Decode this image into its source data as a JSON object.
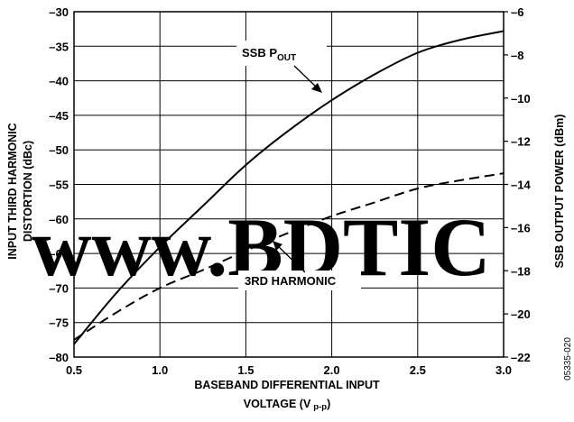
{
  "chart_data": {
    "type": "line",
    "xlabel_line1": "BASEBAND DIFFERENTIAL INPUT",
    "xlabel_line2_main": "VOLTAGE (V",
    "xlabel_line2_sub": "p-p",
    "xlabel_line2_end": ")",
    "ylabel_left_line1": "INPUT THIRD HARMONIC",
    "ylabel_left_line2": "DISTORTION (dBc)",
    "ylabel_right": "SSB OUTPUT POWER (dBm)",
    "xlim": [
      0.5,
      3.0
    ],
    "ylim_left": [
      -80,
      -30
    ],
    "ylim_right": [
      -22,
      -6
    ],
    "x_ticks": [
      "0.5",
      "1.0",
      "1.5",
      "2.0",
      "2.5",
      "3.0"
    ],
    "y_left_ticks": [
      "–80",
      "–75",
      "–70",
      "–65",
      "–60",
      "–55",
      "–50",
      "–45",
      "–40",
      "–35",
      "–30"
    ],
    "y_right_ticks": [
      "–22",
      "–20",
      "–18",
      "–16",
      "–14",
      "–12",
      "–10",
      "–8",
      "–6"
    ],
    "grid": true,
    "series": [
      {
        "name": "SSB POUT",
        "axis": "right",
        "style": "solid",
        "x": [
          0.5,
          0.75,
          1.0,
          1.25,
          1.5,
          1.75,
          2.0,
          2.25,
          2.5,
          2.75,
          3.0
        ],
        "y": [
          -21.4,
          -19.0,
          -16.9,
          -15.0,
          -13.1,
          -11.5,
          -10.1,
          -8.9,
          -7.9,
          -7.3,
          -6.9
        ]
      },
      {
        "name": "3RD HARMONIC",
        "axis": "left",
        "style": "dashed",
        "x": [
          0.5,
          0.75,
          1.0,
          1.25,
          1.5,
          1.75,
          2.0,
          2.25,
          2.5,
          2.75,
          3.0
        ],
        "y": [
          -77.5,
          -73.5,
          -70.0,
          -67.4,
          -64.6,
          -62.0,
          -59.6,
          -57.6,
          -55.6,
          -54.4,
          -53.4
        ]
      }
    ],
    "annotations": [
      {
        "text_main": "SSB P",
        "text_sub": "OUT"
      },
      {
        "text_main": "3RD HARMONIC"
      }
    ]
  },
  "watermark": "www.BDTIC",
  "watermark_color": "#f26b21",
  "figure_code": "05335-020"
}
